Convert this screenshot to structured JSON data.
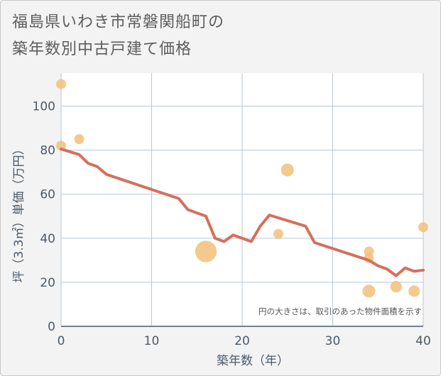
{
  "title_line1": "福島県いわき市常磐関船町の",
  "title_line2": "築年数別中古戸建て価格",
  "chart_data": {
    "type": "scatter+line",
    "xlabel": "築年数（年）",
    "ylabel": "坪（3.3㎡）単価（万円）",
    "xlim": [
      0,
      40
    ],
    "ylim": [
      0,
      115
    ],
    "x_ticks": [
      0,
      10,
      20,
      30,
      40
    ],
    "y_ticks": [
      0,
      20,
      40,
      60,
      80,
      100
    ],
    "note": "円の大きさは、取引のあった物件面積を示す",
    "colors": {
      "line": "#d4705c",
      "bubble": "#f2c07a",
      "grid": "#b9c7d6",
      "plot_bg": "#ffffff"
    },
    "line": {
      "x": [
        0,
        2,
        3,
        4,
        5,
        13,
        14,
        16,
        17,
        18,
        19,
        21,
        22,
        23,
        27,
        28,
        34,
        35,
        36,
        37,
        38,
        39,
        40
      ],
      "y": [
        80.5,
        78,
        74,
        72.5,
        69,
        58,
        53,
        50,
        40,
        38.5,
        41.5,
        38.5,
        45.5,
        50.5,
        45.5,
        38,
        30,
        27.5,
        26,
        23,
        26.5,
        25,
        25.5
      ]
    },
    "bubbles": [
      {
        "x": 0,
        "y": 110,
        "size": 2
      },
      {
        "x": 0,
        "y": 82,
        "size": 2
      },
      {
        "x": 2,
        "y": 85,
        "size": 2
      },
      {
        "x": 16,
        "y": 34,
        "size": 14
      },
      {
        "x": 24,
        "y": 42,
        "size": 2
      },
      {
        "x": 25,
        "y": 71,
        "size": 4
      },
      {
        "x": 34,
        "y": 34,
        "size": 2
      },
      {
        "x": 34,
        "y": 31,
        "size": 2
      },
      {
        "x": 34,
        "y": 16,
        "size": 4
      },
      {
        "x": 37,
        "y": 18,
        "size": 3
      },
      {
        "x": 39,
        "y": 16,
        "size": 3
      },
      {
        "x": 40,
        "y": 45,
        "size": 2
      }
    ]
  }
}
